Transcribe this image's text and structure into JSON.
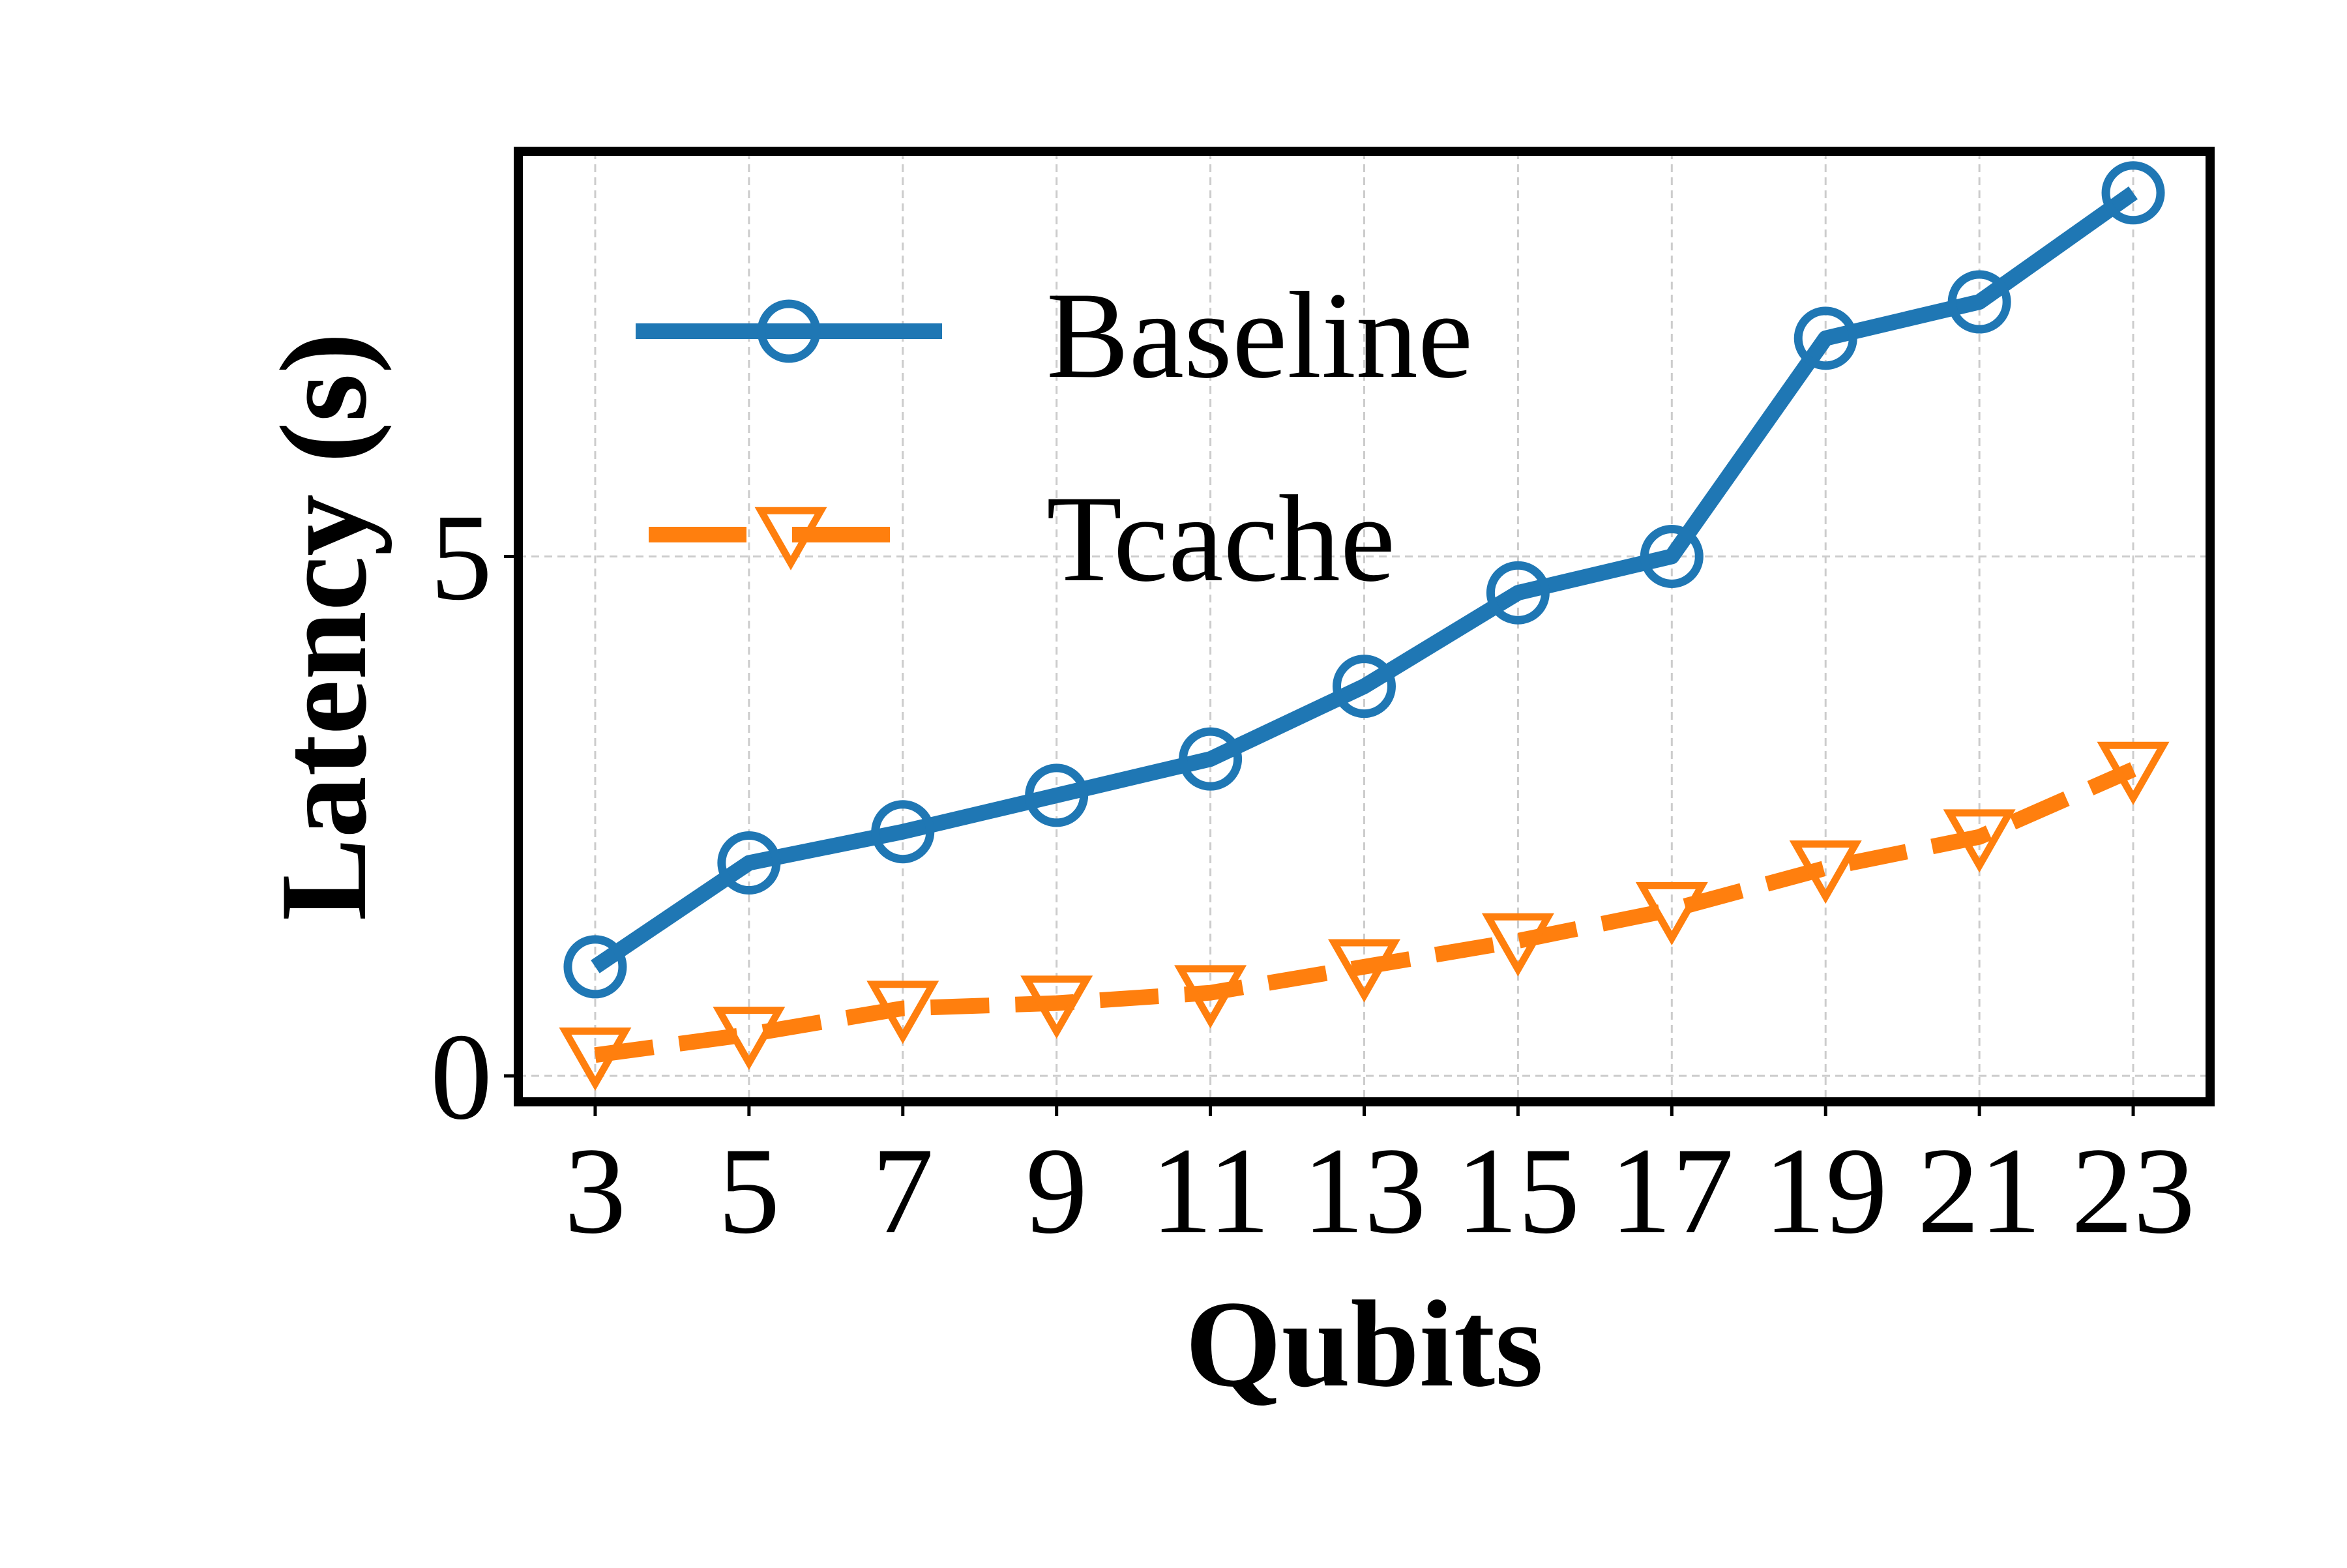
{
  "chart_data": {
    "type": "line",
    "xlabel": "Qubits",
    "ylabel": "Latency (s)",
    "x": [
      3,
      5,
      7,
      9,
      11,
      13,
      15,
      17,
      19,
      21,
      23
    ],
    "x_tick_labels": [
      "3",
      "5",
      "7",
      "9",
      "11",
      "13",
      "15",
      "17",
      "19",
      "21",
      "23"
    ],
    "y_ticks": [
      0,
      5
    ],
    "y_tick_labels": [
      "0",
      "5"
    ],
    "ylim": [
      -0.25,
      8.9
    ],
    "grid": true,
    "legend_position": "top-left",
    "series": [
      {
        "name": "Baseline",
        "color": "#1f77b4",
        "line_style": "solid",
        "marker": "circle-open",
        "values": [
          1.05,
          2.05,
          2.35,
          2.7,
          3.05,
          3.75,
          4.65,
          5.0,
          7.1,
          7.45,
          8.5
        ]
      },
      {
        "name": "Tcache",
        "color": "#ff7f0e",
        "line_style": "dashed",
        "marker": "triangle-down-open",
        "values": [
          0.2,
          0.4,
          0.65,
          0.7,
          0.8,
          1.05,
          1.3,
          1.6,
          2.0,
          2.3,
          2.95
        ]
      }
    ]
  }
}
